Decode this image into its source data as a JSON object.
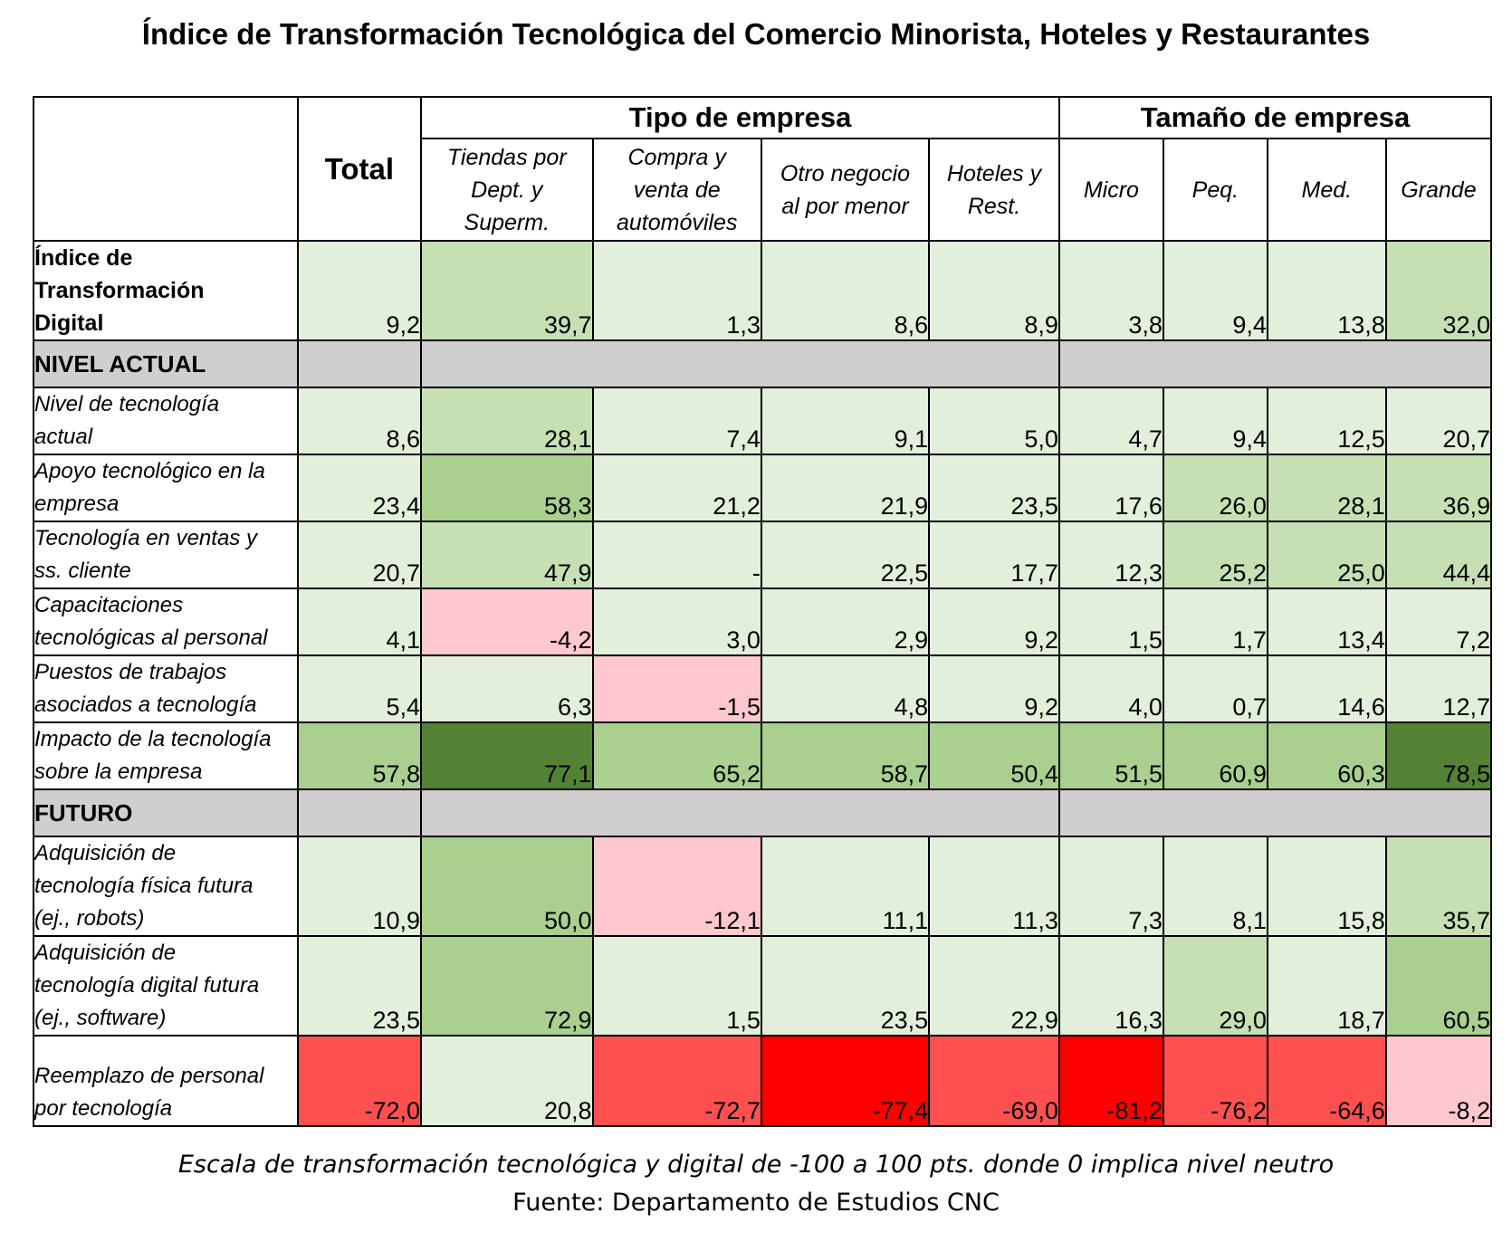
{
  "title": "Índice de Transformación Tecnológica del Comercio Minorista, Hoteles y Restaurantes",
  "chart_data": {
    "type": "table",
    "header": {
      "total": "Total",
      "group_tipo": "Tipo de empresa",
      "group_tamano": "Tamaño de empresa",
      "columns": [
        [
          "Tiendas por",
          "Dept. y",
          "Superm."
        ],
        [
          "Compra y",
          "venta de",
          "automóviles"
        ],
        [
          "Otro negocio",
          "al por menor"
        ],
        [
          "Hoteles y",
          "Rest."
        ],
        [
          "Micro"
        ],
        [
          "Peq."
        ],
        [
          "Med."
        ],
        [
          "Grande"
        ]
      ]
    },
    "rows": [
      {
        "kind": "data",
        "bold": true,
        "label": [
          "Índice de",
          "Transformación",
          "Digital"
        ],
        "values": [
          "9,2",
          "39,7",
          "1,3",
          "8,6",
          "8,9",
          "3,8",
          "9,4",
          "13,8",
          "32,0"
        ]
      },
      {
        "kind": "section",
        "label": "NIVEL ACTUAL"
      },
      {
        "kind": "data",
        "label": [
          "Nivel de tecnología",
          "actual"
        ],
        "values": [
          "8,6",
          "28,1",
          "7,4",
          "9,1",
          "5,0",
          "4,7",
          "9,4",
          "12,5",
          "20,7"
        ]
      },
      {
        "kind": "data",
        "label": [
          "Apoyo tecnológico en la",
          "empresa"
        ],
        "values": [
          "23,4",
          "58,3",
          "21,2",
          "21,9",
          "23,5",
          "17,6",
          "26,0",
          "28,1",
          "36,9"
        ]
      },
      {
        "kind": "data",
        "label": [
          "Tecnología en ventas y",
          "ss. cliente"
        ],
        "values": [
          "20,7",
          "47,9",
          "-",
          "22,5",
          "17,7",
          "12,3",
          "25,2",
          "25,0",
          "44,4"
        ]
      },
      {
        "kind": "data",
        "label": [
          "Capacitaciones",
          "tecnológicas al personal"
        ],
        "values": [
          "4,1",
          "-4,2",
          "3,0",
          "2,9",
          "9,2",
          "1,5",
          "1,7",
          "13,4",
          "7,2"
        ]
      },
      {
        "kind": "data",
        "label": [
          "Puestos de trabajos",
          "asociados a tecnología"
        ],
        "values": [
          "5,4",
          "6,3",
          "-1,5",
          "4,8",
          "9,2",
          "4,0",
          "0,7",
          "14,6",
          "12,7"
        ]
      },
      {
        "kind": "data",
        "label": [
          "Impacto de la tecnología",
          "sobre la empresa"
        ],
        "values": [
          "57,8",
          "77,1",
          "65,2",
          "58,7",
          "50,4",
          "51,5",
          "60,9",
          "60,3",
          "78,5"
        ]
      },
      {
        "kind": "section",
        "label": "FUTURO"
      },
      {
        "kind": "data",
        "label": [
          "Adquisición de",
          "tecnología física futura",
          "(ej., robots)"
        ],
        "values": [
          "10,9",
          "50,0",
          "-12,1",
          "11,1",
          "11,3",
          "7,3",
          "8,1",
          "15,8",
          "35,7"
        ]
      },
      {
        "kind": "data",
        "label": [
          "Adquisición de",
          "tecnología digital futura",
          "(ej., software)"
        ],
        "values": [
          "23,5",
          "72,9",
          "1,5",
          "23,5",
          "22,9",
          "16,3",
          "29,0",
          "18,7",
          "60,5"
        ]
      },
      {
        "kind": "data",
        "label": [
          "Reemplazo de personal",
          "por tecnología"
        ],
        "values": [
          "-72,0",
          "20,8",
          "-72,7",
          "-77,4",
          "-69,0",
          "-81,2",
          "-76,2",
          "-64,6",
          "-8,2"
        ]
      }
    ],
    "colors": {
      "green_light": "#e2efda",
      "green_mid": "#c6e0b4",
      "green_strong": "#a9d08e",
      "green_dark": "#548235",
      "pink": "#ffc7ce",
      "red": "#ff5050",
      "red_strong": "#ff0000",
      "section_gray": "#d0cece"
    }
  },
  "note": "Escala de transformación tecnológica y digital de -100 a 100 pts. donde 0 implica nivel neutro",
  "source": "Fuente: Departamento de Estudios CNC"
}
